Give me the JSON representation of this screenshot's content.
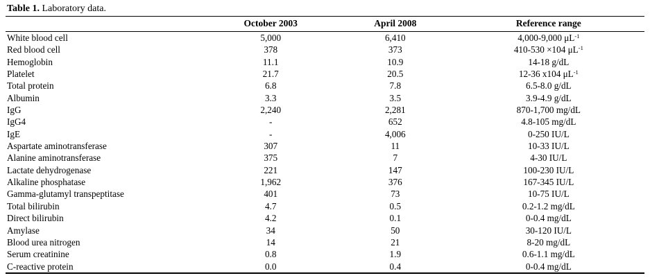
{
  "table": {
    "title_label": "Table 1.",
    "title_text": "Laboratory data.",
    "columns": [
      "",
      "October 2003",
      "April 2008",
      "Reference range"
    ],
    "rows": [
      {
        "name": "White blood cell",
        "oct2003": "5,000",
        "apr2008": "6,410",
        "ref": "4,000-9,000 μL",
        "ref_sup": "-1"
      },
      {
        "name": "Red blood cell",
        "oct2003": "378",
        "apr2008": "373",
        "ref": "410-530 ×104 μL",
        "ref_sup": "-1"
      },
      {
        "name": "Hemoglobin",
        "oct2003": "11.1",
        "apr2008": "10.9",
        "ref": "14-18 g/dL",
        "ref_sup": ""
      },
      {
        "name": "Platelet",
        "oct2003": "21.7",
        "apr2008": "20.5",
        "ref": "12-36 x104 μL",
        "ref_sup": "-1"
      },
      {
        "name": "Total protein",
        "oct2003": "6.8",
        "apr2008": "7.8",
        "ref": "6.5-8.0 g/dL",
        "ref_sup": ""
      },
      {
        "name": "Albumin",
        "oct2003": "3.3",
        "apr2008": "3.5",
        "ref": "3.9-4.9 g/dL",
        "ref_sup": ""
      },
      {
        "name": "IgG",
        "oct2003": "2,240",
        "apr2008": "2,281",
        "ref": "870-1,700 mg/dL",
        "ref_sup": ""
      },
      {
        "name": "IgG4",
        "oct2003": "-",
        "apr2008": "652",
        "ref": "4.8-105 mg/dL",
        "ref_sup": ""
      },
      {
        "name": "IgE",
        "oct2003": "-",
        "apr2008": "4,006",
        "ref": "0-250 IU/L",
        "ref_sup": ""
      },
      {
        "name": "Aspartate aminotransferase",
        "oct2003": "307",
        "apr2008": "11",
        "ref": "10-33 IU/L",
        "ref_sup": ""
      },
      {
        "name": "Alanine aminotransferase",
        "oct2003": "375",
        "apr2008": "7",
        "ref": "4-30 IU/L",
        "ref_sup": ""
      },
      {
        "name": "Lactate dehydrogenase",
        "oct2003": "221",
        "apr2008": "147",
        "ref": "100-230 IU/L",
        "ref_sup": ""
      },
      {
        "name": "Alkaline phosphatase",
        "oct2003": "1,962",
        "apr2008": "376",
        "ref": "167-345 IU/L",
        "ref_sup": ""
      },
      {
        "name": "Gamma-glutamyl transpeptitase",
        "oct2003": "401",
        "apr2008": "73",
        "ref": "10-75 IU/L",
        "ref_sup": ""
      },
      {
        "name": "Total bilirubin",
        "oct2003": "4.7",
        "apr2008": "0.5",
        "ref": "0.2-1.2 mg/dL",
        "ref_sup": ""
      },
      {
        "name": "Direct bilirubin",
        "oct2003": "4.2",
        "apr2008": "0.1",
        "ref": "0-0.4 mg/dL",
        "ref_sup": ""
      },
      {
        "name": "Amylase",
        "oct2003": "34",
        "apr2008": "50",
        "ref": "30-120 IU/L",
        "ref_sup": ""
      },
      {
        "name": "Blood urea nitrogen",
        "oct2003": "14",
        "apr2008": "21",
        "ref": "8-20 mg/dL",
        "ref_sup": ""
      },
      {
        "name": "Serum creatinine",
        "oct2003": "0.8",
        "apr2008": "1.9",
        "ref": "0.6-1.1 mg/dL",
        "ref_sup": ""
      },
      {
        "name": "C-reactive protein",
        "oct2003": "0.0",
        "apr2008": "0.4",
        "ref": "0-0.4 mg/dL",
        "ref_sup": ""
      }
    ]
  }
}
